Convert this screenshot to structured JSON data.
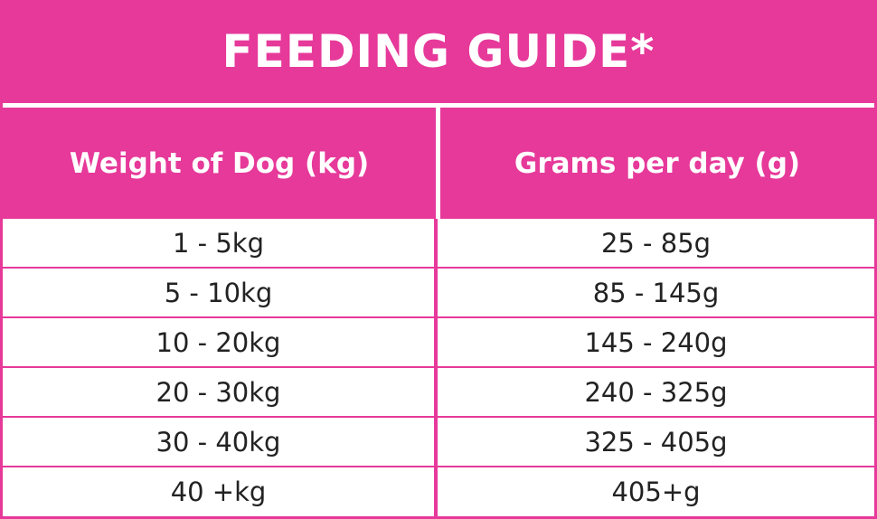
{
  "title": "FEEDING GUIDE*",
  "columns": [
    "Weight of Dog (kg)",
    "Grams per day (g)"
  ],
  "rows": [
    {
      "weight": "1 - 5kg",
      "grams": "25 - 85g"
    },
    {
      "weight": "5 - 10kg",
      "grams": "85 - 145g"
    },
    {
      "weight": "10 - 20kg",
      "grams": "145 - 240g"
    },
    {
      "weight": "20 - 30kg",
      "grams": "240 - 325g"
    },
    {
      "weight": "30 - 40kg",
      "grams": "325 - 405g"
    },
    {
      "weight": "40 +kg",
      "grams": "405+g"
    }
  ],
  "colors": {
    "accent": "#e6399a",
    "text": "#222222",
    "background": "#ffffff"
  }
}
